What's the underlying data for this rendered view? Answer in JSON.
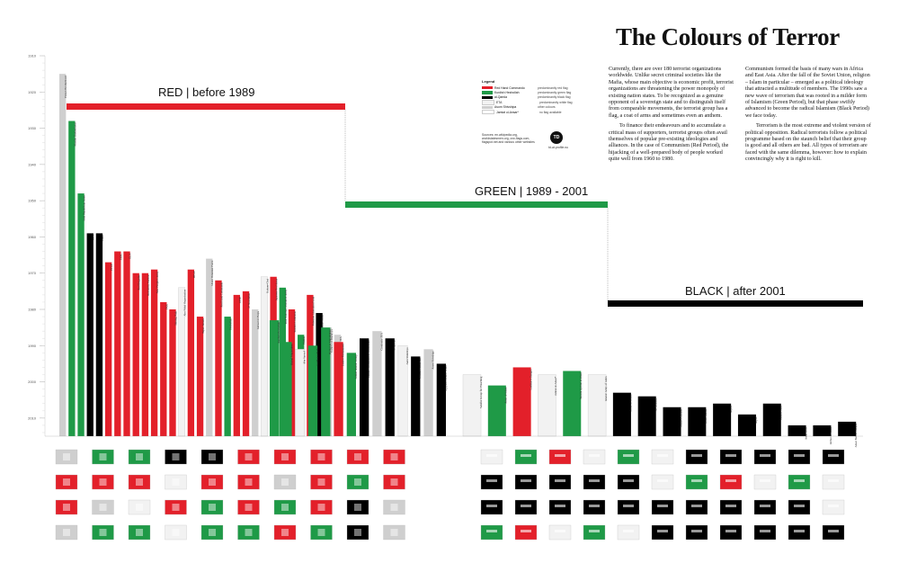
{
  "title": "The Colours of Terror",
  "eras": [
    {
      "key": "red",
      "label": "RED | before 1989",
      "color": "#e3202a"
    },
    {
      "key": "green",
      "label": "GREEN | 1989 - 2001",
      "color": "#1f9a47"
    },
    {
      "key": "black",
      "label": "BLACK | after 2001",
      "color": "#000000"
    }
  ],
  "legend": {
    "heading": "Legend",
    "items": [
      {
        "name": "Red Hand Commando",
        "desc": "predominantly red flag",
        "color": "#e3202a"
      },
      {
        "name": "Kurdish Hezbollah",
        "desc": "predominantly green flag",
        "color": "#1f9a47"
      },
      {
        "name": "al-Qaeda",
        "desc": "predominantly black flag",
        "color": "#000000"
      },
      {
        "name": "ETA",
        "desc": "predominantly white flag",
        "color": "#f2f2f2"
      },
      {
        "name": "Asom Shivshipa",
        "desc": "other colours",
        "color": "#cfcfcf"
      },
      {
        "name": "Jamiat ul-Ansar*",
        "desc": "no flag available",
        "color": "#ffffff"
      }
    ]
  },
  "sources": "Sources: en.wikipedia.org, worldstatesmen.org, crw-flags.com, flagspot.net and various other websites",
  "brand": {
    "logo": "TD",
    "caption": "td-at-profile.nu"
  },
  "intro_col1": [
    "Currently, there are over 180 terrorist organizations worldwide. Unlike secret criminal societies like the Mafia, whose main objective is economic profit, terrorist organizations are threatening the power monopoly of existing nation states. To be recognized as a genuine opponent of a sovereign state and to distinguish itself from comparable movements, the terrorist group has a flag, a coat of arms and sometimes even an anthem.",
    "To finance their endeavours and to accumulate a critical mass of supporters, terrorist groups often avail themselves of popular pre-existing ideologies and alliances. In the case of Communism (Red Period), the hijacking of a well-prepared body of people worked quite well from 1960 to 1980."
  ],
  "intro_col2": [
    "Communism formed the basis of many wars in Africa and East Asia. After the fall of the Soviet Union, religion – Islam in particular – emerged as a political ideology that attracted a multitude of members. The 1990s saw a new wave of terrorism that was rooted in a milder form of Islamism (Green Period), but that phase swiftly advanced to become the radical Islamism (Black Period) we face today.",
    "Terrorism is the most extreme and violent version of political opposition. Radical terrorists follow a political programme based on the staunch belief that their group is good and all others are bad. All types of terrorism are faced with the same dilemma, however: how to explain convincingly why it is right to kill."
  ],
  "chart_data": {
    "type": "bar",
    "x_label": "",
    "y_label": "",
    "ylim": [
      1910,
      2015
    ],
    "yticks": [
      1910,
      1920,
      1930,
      1940,
      1950,
      1960,
      1970,
      1980,
      1990,
      2000,
      2010
    ],
    "era_breaks": [
      1989,
      2001
    ],
    "legend_position": "top-center",
    "grid": false,
    "series": [
      {
        "era": "red",
        "name": "red",
        "bars": [
          {
            "name": "Fenian Brotherhood",
            "start": 1915,
            "color": "#cfcfcf"
          },
          {
            "name": "Muslim Brotherhood",
            "start": 1928,
            "color": "#1f9a47"
          },
          {
            "name": "Irish Republican Army",
            "start": 1948,
            "color": "#1f9a47"
          },
          {
            "name": "ETA",
            "start": 1959,
            "color": "#000000"
          },
          {
            "name": "Fatah",
            "start": 1959,
            "color": "#000000"
          },
          {
            "name": "PFLP",
            "start": 1967,
            "color": "#e3202a"
          },
          {
            "name": "FARC",
            "start": 1964,
            "color": "#e3202a"
          },
          {
            "name": "ELN",
            "start": 1964,
            "color": "#e3202a"
          },
          {
            "name": "Red Brigades",
            "start": 1970,
            "color": "#e3202a"
          },
          {
            "name": "Red Army Faction",
            "start": 1970,
            "color": "#e3202a"
          },
          {
            "name": "New People's Army",
            "start": 1969,
            "color": "#e3202a"
          },
          {
            "name": "PKK",
            "start": 1978,
            "color": "#e3202a"
          },
          {
            "name": "Shining Path",
            "start": 1980,
            "color": "#e3202a"
          },
          {
            "name": "Abu Nidal Organization",
            "start": 1974,
            "color": "#f2f2f2"
          },
          {
            "name": "DFLP",
            "start": 1969,
            "color": "#e3202a"
          },
          {
            "name": "Tupac Amaru",
            "start": 1982,
            "color": "#e3202a"
          },
          {
            "name": "Ulster Volunteer Force",
            "start": 1966,
            "color": "#cfcfcf"
          },
          {
            "name": "Red Hand Commando",
            "start": 1972,
            "color": "#e3202a"
          },
          {
            "name": "Hezbollah",
            "start": 1982,
            "color": "#1f9a47"
          },
          {
            "name": "LTTE",
            "start": 1976,
            "color": "#e3202a"
          },
          {
            "name": "17 November",
            "start": 1975,
            "color": "#e3202a"
          },
          {
            "name": "Jamaat ul-Fuqra",
            "start": 1980,
            "color": "#cfcfcf"
          },
          {
            "name": "Kahane Chai",
            "start": 1971,
            "color": "#f2f2f2"
          },
          {
            "name": "Japanese Red Army",
            "start": 1971,
            "color": "#e3202a"
          },
          {
            "name": "Irish National Liberation Army",
            "start": 1974,
            "color": "#1f9a47"
          },
          {
            "name": "Sendero Luminoso",
            "start": 1980,
            "color": "#e3202a"
          },
          {
            "name": "Hamas",
            "start": 1987,
            "color": "#1f9a47"
          },
          {
            "name": "Palestine Liberation Front",
            "start": 1976,
            "color": "#e3202a"
          },
          {
            "name": "Islamic Jihad",
            "start": 1981,
            "color": "#000000"
          },
          {
            "name": "Gama'a al-Islamiyya",
            "start": 1985,
            "color": "#cfcfcf"
          },
          {
            "name": "Real IRA",
            "start": 1987,
            "color": "#cfcfcf"
          }
        ]
      },
      {
        "era": "green",
        "name": "green",
        "bars": [
          {
            "name": "Kurdish Hezbollah",
            "start": 1983,
            "color": "#1f9a47"
          },
          {
            "name": "Hizbul Mujahideen",
            "start": 1989,
            "color": "#1f9a47"
          },
          {
            "name": "Abu Sayyaf",
            "start": 1991,
            "color": "#f2f2f2"
          },
          {
            "name": "Lashkar-e-Taiba",
            "start": 1990,
            "color": "#1f9a47"
          },
          {
            "name": "Harkat-ul-Mujahideen",
            "start": 1985,
            "color": "#1f9a47"
          },
          {
            "name": "Jaish-e-Mohammed",
            "start": 1989,
            "color": "#e3202a"
          },
          {
            "name": "Armed Islamic Group",
            "start": 1992,
            "color": "#1f9a47"
          },
          {
            "name": "Islamic Movement of Uzbekistan",
            "start": 1988,
            "color": "#000000"
          },
          {
            "name": "Continuity IRA",
            "start": 1986,
            "color": "#cfcfcf"
          },
          {
            "name": "al-Qaeda",
            "start": 1988,
            "color": "#000000"
          },
          {
            "name": "Aum Shinrikyo",
            "start": 1990,
            "color": "#f2f2f2"
          },
          {
            "name": "Jemaah Islamiyah",
            "start": 1993,
            "color": "#000000"
          },
          {
            "name": "Asom Shivshipa",
            "start": 1991,
            "color": "#cfcfcf"
          },
          {
            "name": "Egyptian Islamic Jihad",
            "start": 1995,
            "color": "#000000"
          }
        ]
      },
      {
        "era": "black",
        "name": "black",
        "bars": [
          {
            "name": "Salafist Group for Preaching",
            "start": 1998,
            "color": "#f2f2f2"
          },
          {
            "name": "Ansar al-Islam",
            "start": 2001,
            "color": "#1f9a47"
          },
          {
            "name": "Lashkar-e-Jhangvi",
            "start": 1996,
            "color": "#e3202a"
          },
          {
            "name": "Jamiat ul-Ansar*",
            "start": 1998,
            "color": "#f2f2f2"
          },
          {
            "name": "Tanzim Qa'idat al-Jihad",
            "start": 1997,
            "color": "#1f9a47"
          },
          {
            "name": "Islamic Army of Aden",
            "start": 1998,
            "color": "#f2f2f2"
          },
          {
            "name": "Ansar al-Sunna",
            "start": 2003,
            "color": "#000000"
          },
          {
            "name": "Al-Shabaab",
            "start": 2004,
            "color": "#000000"
          },
          {
            "name": "Tehrik-i-Taliban",
            "start": 2007,
            "color": "#000000"
          },
          {
            "name": "Boko Haram",
            "start": 2007,
            "color": "#000000"
          },
          {
            "name": "AQIM",
            "start": 2006,
            "color": "#000000"
          },
          {
            "name": "AQAP",
            "start": 2009,
            "color": "#000000"
          },
          {
            "name": "Islamic State",
            "start": 2006,
            "color": "#000000"
          },
          {
            "name": "Ansar Dine",
            "start": 2012,
            "color": "#000000"
          },
          {
            "name": "Jabhat al-Nusra",
            "start": 2012,
            "color": "#000000"
          },
          {
            "name": "Ansar Bait al-Maqdis",
            "start": 2011,
            "color": "#000000"
          }
        ]
      }
    ]
  }
}
